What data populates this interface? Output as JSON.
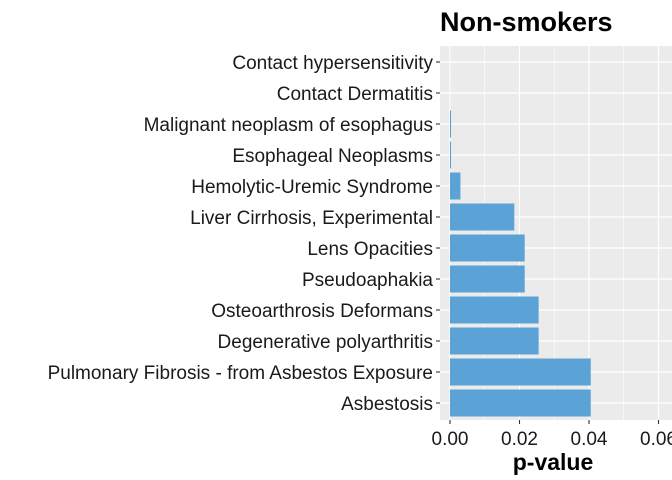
{
  "chart_data": {
    "type": "bar",
    "orientation": "horizontal",
    "title": "Non-smokers",
    "xlabel": "p-value",
    "ylabel": "",
    "xlim": [
      0,
      0.06
    ],
    "xticks": [
      "0.00",
      "0.02",
      "0.04",
      "0.06"
    ],
    "grid": true,
    "legend": "none",
    "bar_color": "#5BA3D6",
    "panel_color": "#EBEBEB",
    "categories": [
      "Asbestosis",
      "Pulmonary Fibrosis - from Asbestos Exposure",
      "Degenerative polyarthritis",
      "Osteoarthrosis Deformans",
      "Pseudoaphakia",
      "Lens Opacities",
      "Liver Cirrhosis, Experimental",
      "Hemolytic-Uremic Syndrome",
      "Esophageal Neoplasms",
      "Malignant neoplasm of esophagus",
      "Contact Dermatitis",
      "Contact hypersensitivity"
    ],
    "values": [
      0.0405,
      0.0405,
      0.0255,
      0.0255,
      0.0215,
      0.0215,
      0.0185,
      0.003,
      0.0003,
      0.0003,
      1e-05,
      1e-05
    ]
  }
}
